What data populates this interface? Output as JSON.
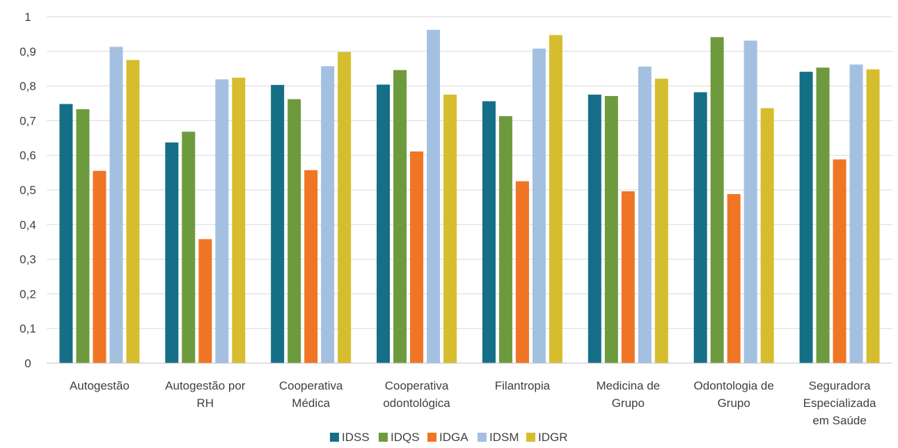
{
  "chart_data": {
    "type": "bar",
    "categories": [
      [
        "Autogestão"
      ],
      [
        "Autogestão por",
        "RH"
      ],
      [
        "Cooperativa",
        "Médica"
      ],
      [
        "Cooperativa",
        "odontológica"
      ],
      [
        "Filantropia"
      ],
      [
        "Medicina de",
        "Grupo"
      ],
      [
        "Odontologia de",
        "Grupo"
      ],
      [
        "Seguradora",
        "Especializada",
        "em Saúde"
      ]
    ],
    "series": [
      {
        "name": "IDSS",
        "color": "#156f87",
        "values": [
          0.748,
          0.637,
          0.803,
          0.804,
          0.756,
          0.775,
          0.782,
          0.841
        ]
      },
      {
        "name": "IDQS",
        "color": "#6e9a3e",
        "values": [
          0.733,
          0.668,
          0.762,
          0.846,
          0.713,
          0.771,
          0.941,
          0.853
        ]
      },
      {
        "name": "IDGA",
        "color": "#f07524",
        "values": [
          0.555,
          0.358,
          0.557,
          0.611,
          0.525,
          0.496,
          0.488,
          0.588
        ]
      },
      {
        "name": "IDSM",
        "color": "#a4c0e0",
        "values": [
          0.913,
          0.819,
          0.857,
          0.962,
          0.908,
          0.856,
          0.931,
          0.862
        ]
      },
      {
        "name": "IDGR",
        "color": "#d6bd2e",
        "values": [
          0.875,
          0.824,
          0.898,
          0.775,
          0.947,
          0.821,
          0.736,
          0.848
        ]
      }
    ],
    "yticks": [
      "0",
      "0,1",
      "0,2",
      "0,3",
      "0,4",
      "0,5",
      "0,6",
      "0,7",
      "0,8",
      "0,9",
      "1"
    ],
    "ylim": [
      0,
      1
    ],
    "grid": true,
    "legend_position": "bottom-center"
  }
}
